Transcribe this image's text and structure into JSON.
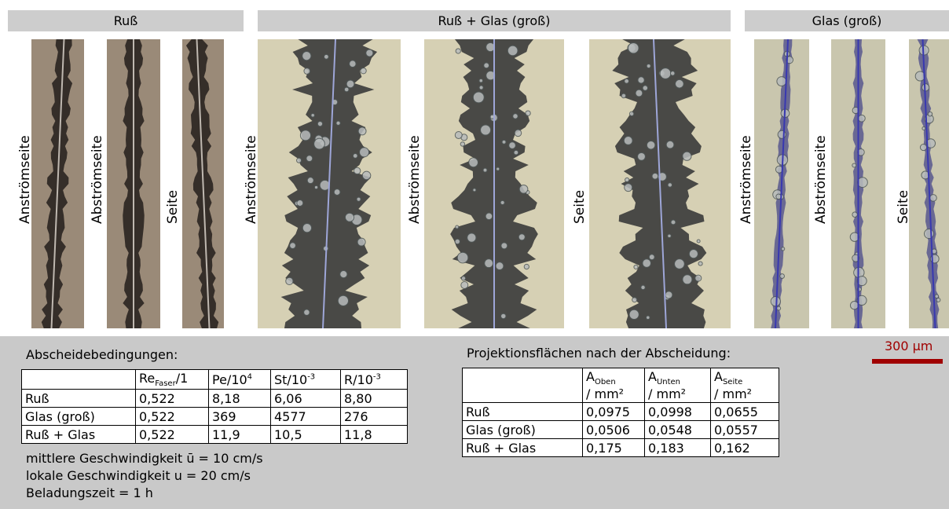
{
  "header_bars": [
    "Ruß",
    "Ruß + Glas (groß)",
    "Glas (groß)"
  ],
  "image_labels": [
    [
      "Anströmseite",
      "Abströmseite",
      "Seite"
    ],
    [
      "Anströmseite",
      "Abströmseite",
      "Seite"
    ],
    [
      "Anströmseite",
      "Abströmseite",
      "Seite"
    ]
  ],
  "scale_bar": "300 µm",
  "conditions": {
    "title": "Abscheidebedingungen:",
    "columns": [
      {
        "text": "Re",
        "sub": "Faser",
        "after": "/1"
      },
      {
        "text": "Pe/10",
        "sup": "4"
      },
      {
        "text": "St/10",
        "sup": "-3"
      },
      {
        "text": "R/10",
        "sup": "-3"
      }
    ],
    "rows": [
      [
        "Ruß",
        "0,522",
        "8,18",
        "6,06",
        "8,80"
      ],
      [
        "Glas (groß)",
        "0,522",
        "369",
        "4577",
        "276"
      ],
      [
        "Ruß + Glas",
        "0,522",
        "11,9",
        "10,5",
        "11,8"
      ]
    ],
    "notes": [
      "mittlere Geschwindigkeit ū = 10 cm/s",
      "lokale Geschwindigkeit u = 20 cm/s",
      "Beladungszeit = 1 h"
    ]
  },
  "projections": {
    "title": "Projektionsflächen nach der Abscheidung:",
    "columns": [
      {
        "text": "A",
        "sub": "Oben",
        "line2": "/ mm²"
      },
      {
        "text": "A",
        "sub": "Unten",
        "line2": "/ mm²"
      },
      {
        "text": "A",
        "sub": "Seite",
        "line2": "/ mm²"
      }
    ],
    "rows": [
      [
        "Ruß",
        "0,0975",
        "0,0998",
        "0,0655"
      ],
      [
        "Glas (groß)",
        "0,0506",
        "0,0548",
        "0,0557"
      ],
      [
        "Ruß + Glas",
        "0,175",
        "0,183",
        "0,162"
      ]
    ]
  }
}
